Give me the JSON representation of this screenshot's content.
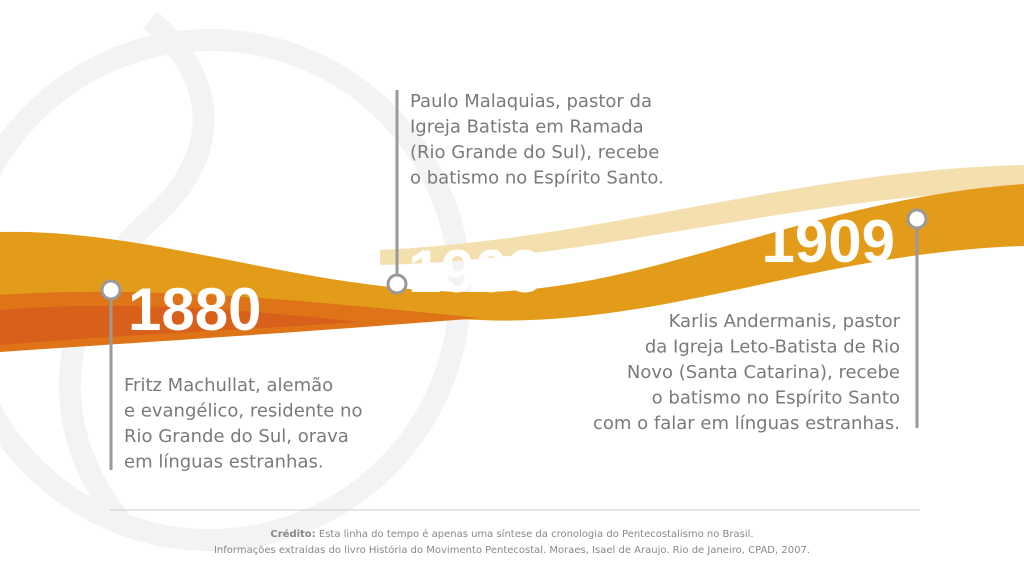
{
  "events": [
    {
      "year": "1880",
      "lines": [
        "Fritz Machullat, alemão",
        "e evangélico, residente no",
        "Rio Grande do Sul, orava",
        "em línguas estranhas."
      ]
    },
    {
      "year": "1908",
      "lines": [
        "Paulo Malaquias, pastor da",
        "Igreja Batista em Ramada",
        "(Rio Grande do Sul), recebe",
        "o batismo no Espírito Santo."
      ]
    },
    {
      "year": "1909",
      "lines": [
        "Karlis Andermanis, pastor",
        "da Igreja Leto-Batista de Rio",
        "Novo (Santa Catarina), recebe",
        "o batismo no Espírito Santo",
        "com o falar em línguas estranhas."
      ]
    }
  ],
  "credit": {
    "label": "Crédito:",
    "line1": "Esta linha do tempo é apenas uma síntese da cronologia do Pentecostalismo no Brasil.",
    "line2": "Informações extraídas do livro História do Movimento Pentecostal. Moraes, Isael de Araujo. Rio de Janeiro, CPAD, 2007."
  }
}
